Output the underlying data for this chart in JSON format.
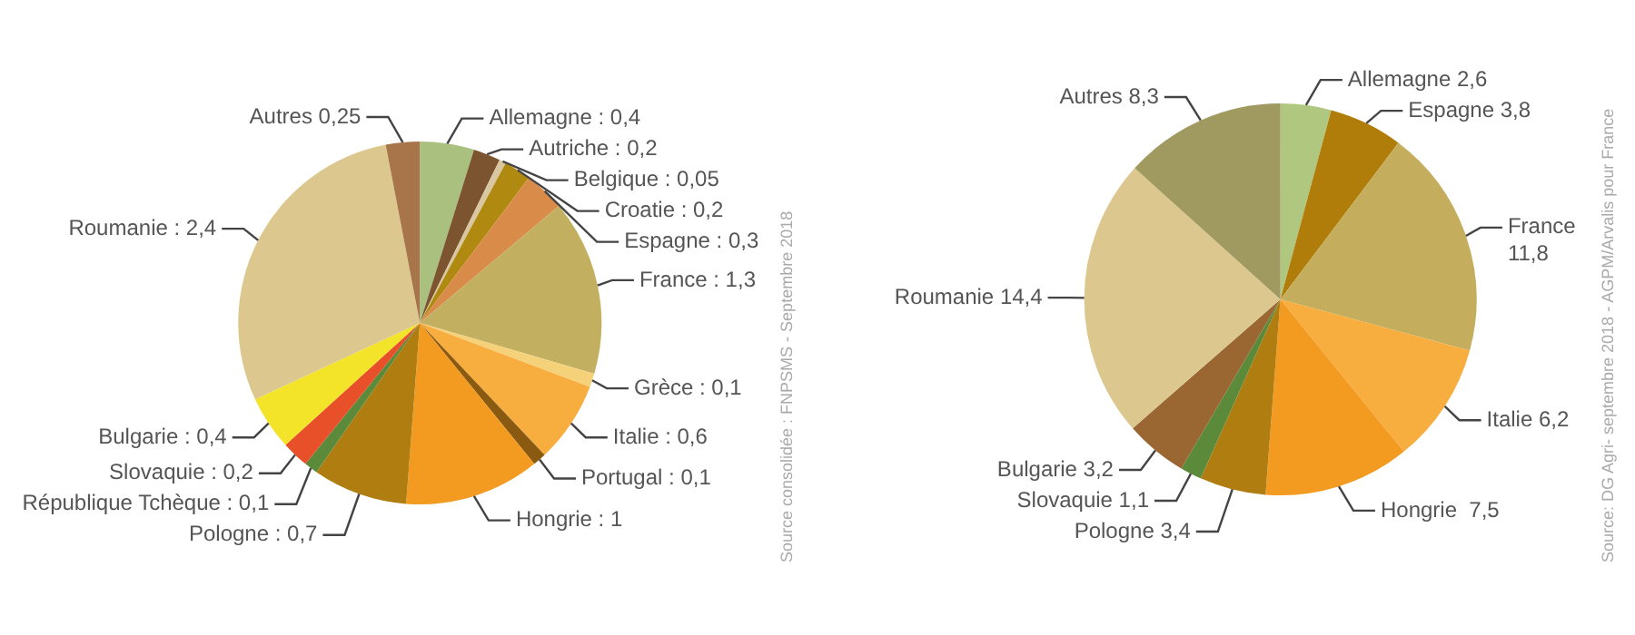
{
  "chart_data": [
    {
      "type": "pie",
      "categories": [
        "Allemagne : 0,4",
        "Autriche : 0,2",
        "Belgique : 0,05",
        "Croatie : 0,2",
        "Espagne : 0,3",
        "France : 1,3",
        "Grèce : 0,1",
        "Italie : 0,6",
        "Portugal : 0,1",
        "Hongrie : 1",
        "Pologne : 0,7",
        "République Tchèque : 0,1",
        "Slovaquie : 0,2",
        "Bulgarie : 0,4",
        "Roumanie : 2,4",
        "Autres 0,25"
      ],
      "values": [
        0.4,
        0.2,
        0.05,
        0.2,
        0.3,
        1.3,
        0.1,
        0.6,
        0.1,
        1,
        0.7,
        0.1,
        0.2,
        0.4,
        2.4,
        0.25
      ],
      "colors": [
        "#a9c07f",
        "#7d5430",
        "#d8c7a0",
        "#b08a10",
        "#d98c4a",
        "#c2b060",
        "#f5d27a",
        "#f8ae3f",
        "#8a5a10",
        "#f39a20",
        "#b07d10",
        "#5a8a3a",
        "#e8502a",
        "#f3e42a",
        "#dcc88e",
        "#a8744a"
      ],
      "annotations": [
        "Source consolidée : FNPSMS - Septembre 2018"
      ]
    },
    {
      "type": "pie",
      "categories": [
        "Allemagne 2,6",
        "Espagne 3,8",
        "France 11,8",
        "Italie 6,2",
        "Hongrie  7,5",
        "Pologne 3,4",
        "Slovaquie 1,1",
        "Bulgarie 3,2",
        "Roumanie 14,4",
        "Autres 8,3"
      ],
      "values": [
        2.6,
        3.8,
        11.8,
        6.2,
        7.5,
        3.4,
        1.1,
        3.2,
        14.4,
        8.3
      ],
      "colors": [
        "#b0c77f",
        "#b07d0a",
        "#c4ae5e",
        "#f8ae3f",
        "#f39a20",
        "#b07d10",
        "#5a8a3a",
        "#9a6632",
        "#dcc88e",
        "#a09a60"
      ],
      "annotations": [
        "Source: DG Agri- septembre 2018 - AGPM/Arvalis pour France"
      ]
    }
  ]
}
